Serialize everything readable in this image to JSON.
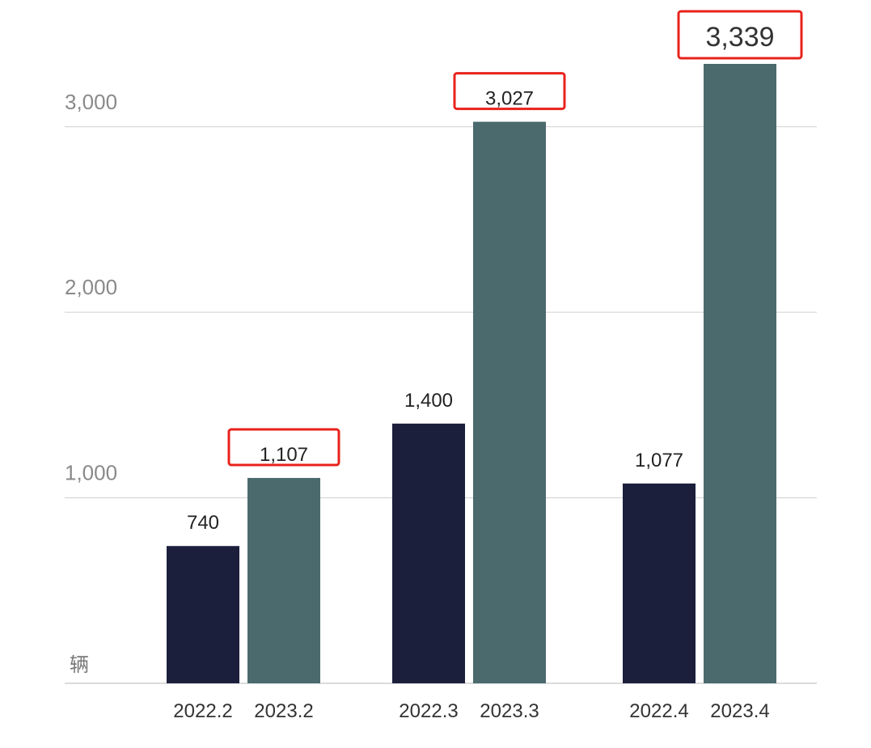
{
  "chart_data": {
    "type": "bar",
    "categories": [
      "2022.2",
      "2023.2",
      "2022.3",
      "2023.3",
      "2022.4",
      "2023.4"
    ],
    "values": [
      740,
      1107,
      1400,
      3027,
      1077,
      3339
    ],
    "data_labels": [
      "740",
      "1,107",
      "1,400",
      "3,027",
      "1,077",
      "3,339"
    ],
    "highlighted": [
      false,
      true,
      false,
      true,
      false,
      true
    ],
    "bar_colors": [
      "#1b1f3b",
      "#4a6a6e",
      "#1b1f3b",
      "#4a6a6e",
      "#1b1f3b",
      "#4a6a6e"
    ],
    "highlight_color": "#e8221b",
    "yticks": [
      {
        "value": 1000,
        "label": "1,000"
      },
      {
        "value": 2000,
        "label": "2,000"
      },
      {
        "value": 3000,
        "label": "3,000"
      }
    ],
    "ylabel": "辆",
    "ylim": [
      0,
      3339
    ],
    "grid": true,
    "legend": "none",
    "title": "",
    "xlabel": ""
  }
}
